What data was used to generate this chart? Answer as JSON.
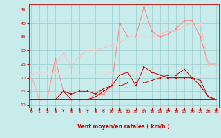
{
  "x": [
    0,
    1,
    2,
    3,
    4,
    5,
    6,
    7,
    8,
    9,
    10,
    11,
    12,
    13,
    14,
    15,
    16,
    17,
    18,
    19,
    20,
    21,
    22,
    23
  ],
  "line1_light": [
    21,
    12,
    12,
    27,
    15,
    12,
    12,
    12,
    14,
    14,
    17,
    40,
    35,
    35,
    46,
    37,
    35,
    36,
    38,
    41,
    41,
    35,
    25,
    25
  ],
  "line2_light": [
    21,
    12,
    12,
    25,
    29,
    24,
    28,
    30,
    30,
    31,
    32,
    33,
    35,
    35,
    35,
    35,
    36,
    37,
    37,
    39,
    40,
    40,
    25,
    25
  ],
  "line3_light": [
    21,
    22,
    22,
    22,
    21,
    21,
    21,
    21,
    21,
    21,
    22,
    22,
    22,
    22,
    22,
    22,
    21,
    21,
    21,
    21,
    21,
    21,
    21,
    21
  ],
  "line4_dark": [
    12,
    12,
    12,
    12,
    15,
    12,
    12,
    12,
    13,
    15,
    17,
    21,
    22,
    17,
    24,
    22,
    21,
    20,
    20,
    20,
    20,
    19,
    13,
    12
  ],
  "line5_dark": [
    12,
    12,
    12,
    12,
    15,
    14,
    15,
    15,
    14,
    16,
    17,
    17,
    18,
    18,
    18,
    19,
    20,
    21,
    21,
    23,
    20,
    17,
    13,
    12
  ],
  "line6_dark": [
    12,
    12,
    12,
    12,
    12,
    12,
    12,
    12,
    12,
    12,
    12,
    12,
    12,
    12,
    12,
    12,
    12,
    12,
    12,
    12,
    12,
    12,
    12,
    12
  ],
  "colors": {
    "line1": "#ff8080",
    "line2": "#ffbbbb",
    "line3": "#ffcccc",
    "line4": "#cc0000",
    "line5": "#cc0000",
    "line6": "#cc0000"
  },
  "bg_color": "#c8ecec",
  "grid_color": "#99cccc",
  "tick_color": "#cc0000",
  "xlabel": "Vent moyen/en rafales ( km/h )",
  "ylim": [
    9,
    47
  ],
  "xlim": [
    -0.3,
    23.3
  ],
  "yticks": [
    10,
    15,
    20,
    25,
    30,
    35,
    40,
    45
  ],
  "xticks": [
    0,
    1,
    2,
    3,
    4,
    5,
    6,
    7,
    8,
    9,
    10,
    11,
    12,
    13,
    14,
    15,
    16,
    17,
    18,
    19,
    20,
    21,
    22,
    23
  ],
  "xtick_labels": [
    "0",
    "1",
    "2",
    "3",
    "4",
    "5",
    "6",
    "7",
    "8",
    "9",
    "10",
    "11",
    "12",
    "13",
    "14",
    "15",
    "16",
    "17",
    "18",
    "19",
    "20",
    "21",
    "22",
    "23"
  ]
}
